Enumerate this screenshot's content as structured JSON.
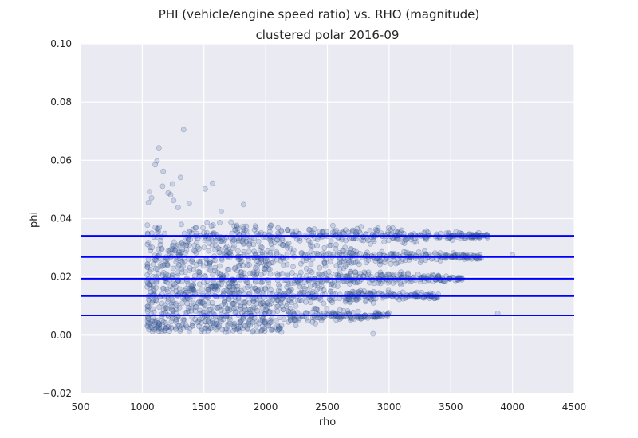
{
  "chart_data": {
    "type": "scatter",
    "suptitle": "PHI (vehicle/engine speed ratio) vs. RHO (magnitude)",
    "title": "clustered polar 2016-09",
    "xlabel": "rho",
    "ylabel": "phi",
    "xlim": [
      500,
      4500
    ],
    "ylim": [
      -0.02,
      0.1
    ],
    "xticks": [
      "500",
      "1000",
      "1500",
      "2000",
      "2500",
      "3000",
      "3500",
      "4000",
      "4500"
    ],
    "yticks": [
      "−0.02",
      "0.00",
      "0.02",
      "0.04",
      "0.06",
      "0.08",
      "0.10"
    ],
    "grid": true,
    "background": "#eaeaf2",
    "point_color": "#4c72b0",
    "line_color": "#0000ff",
    "cluster_lines": [
      0.0068,
      0.0134,
      0.0194,
      0.0268,
      0.0341
    ],
    "bands": [
      {
        "phi": 0.0068,
        "rho_min": 1050,
        "rho_max": 3000,
        "density": 0.8
      },
      {
        "phi": 0.0134,
        "rho_min": 1050,
        "rho_max": 3400,
        "density": 1.0
      },
      {
        "phi": 0.0194,
        "rho_min": 1050,
        "rho_max": 3600,
        "density": 1.0
      },
      {
        "phi": 0.0268,
        "rho_min": 1050,
        "rho_max": 3750,
        "density": 1.0
      },
      {
        "phi": 0.0341,
        "rho_min": 1250,
        "rho_max": 3800,
        "density": 1.0
      }
    ],
    "outliers": [
      [
        1335,
        0.0705
      ],
      [
        1135,
        0.0643
      ],
      [
        1120,
        0.0598
      ],
      [
        1105,
        0.0585
      ],
      [
        1170,
        0.0562
      ],
      [
        1310,
        0.0541
      ],
      [
        1570,
        0.0521
      ],
      [
        1245,
        0.0519
      ],
      [
        1165,
        0.0511
      ],
      [
        1510,
        0.0502
      ],
      [
        1060,
        0.0492
      ],
      [
        1210,
        0.0488
      ],
      [
        1230,
        0.0482
      ],
      [
        1075,
        0.0471
      ],
      [
        1255,
        0.0462
      ],
      [
        1820,
        0.0448
      ],
      [
        1380,
        0.0452
      ],
      [
        1050,
        0.0455
      ],
      [
        1640,
        0.0425
      ],
      [
        1290,
        0.0438
      ],
      [
        2870,
        0.0005
      ],
      [
        3880,
        0.0075
      ],
      [
        4000,
        0.0275
      ]
    ]
  }
}
